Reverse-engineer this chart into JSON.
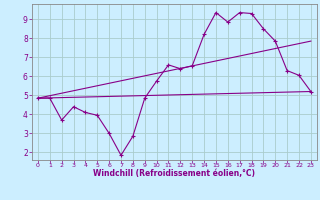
{
  "xlabel": "Windchill (Refroidissement éolien,°C)",
  "bg_color": "#cceeff",
  "grid_color": "#aacccc",
  "line_color": "#880088",
  "spine_color": "#888888",
  "xlim": [
    -0.5,
    23.5
  ],
  "ylim": [
    1.6,
    9.8
  ],
  "xticks": [
    0,
    1,
    2,
    3,
    4,
    5,
    6,
    7,
    8,
    9,
    10,
    11,
    12,
    13,
    14,
    15,
    16,
    17,
    18,
    19,
    20,
    21,
    22,
    23
  ],
  "yticks": [
    2,
    3,
    4,
    5,
    6,
    7,
    8,
    9
  ],
  "series1_x": [
    0,
    1,
    2,
    3,
    4,
    5,
    6,
    7,
    8,
    9,
    10,
    11,
    12,
    13,
    14,
    15,
    16,
    17,
    18,
    19,
    20,
    21,
    22,
    23
  ],
  "series1_y": [
    4.85,
    4.85,
    3.7,
    4.4,
    4.1,
    3.95,
    3.0,
    1.85,
    2.85,
    4.85,
    5.75,
    6.6,
    6.4,
    6.55,
    8.2,
    9.35,
    8.85,
    9.35,
    9.3,
    8.5,
    7.85,
    6.3,
    6.05,
    5.2
  ],
  "series2_x": [
    0,
    23
  ],
  "series2_y": [
    4.85,
    5.2
  ],
  "series3_x": [
    0,
    23
  ],
  "series3_y": [
    4.85,
    7.85
  ]
}
